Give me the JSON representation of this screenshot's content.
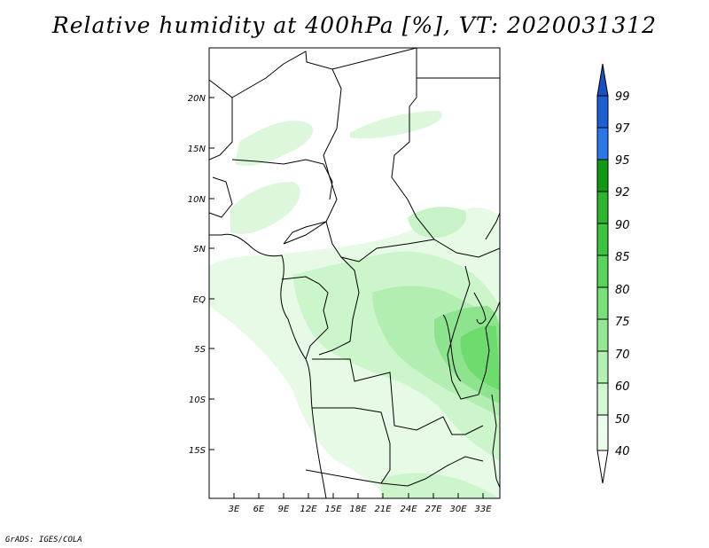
{
  "title": "Relative humidity at 400hPa [%], VT: 2020031312",
  "credit": "GrADS: IGES/COLA",
  "map": {
    "projection": "latlon",
    "lon_range": [
      0,
      35
    ],
    "lat_range": [
      -20,
      25
    ],
    "lat_ticks": [
      {
        "value": 20,
        "label": "20N"
      },
      {
        "value": 15,
        "label": "15N"
      },
      {
        "value": 10,
        "label": "10N"
      },
      {
        "value": 5,
        "label": "5N"
      },
      {
        "value": 0,
        "label": "EQ"
      },
      {
        "value": -5,
        "label": "5S"
      },
      {
        "value": -10,
        "label": "10S"
      },
      {
        "value": -15,
        "label": "15S"
      }
    ],
    "lon_ticks": [
      {
        "value": 3,
        "label": "3E"
      },
      {
        "value": 6,
        "label": "6E"
      },
      {
        "value": 9,
        "label": "9E"
      },
      {
        "value": 12,
        "label": "12E"
      },
      {
        "value": 15,
        "label": "15E"
      },
      {
        "value": 18,
        "label": "18E"
      },
      {
        "value": 21,
        "label": "21E"
      },
      {
        "value": 24,
        "label": "24E"
      },
      {
        "value": 27,
        "label": "27E"
      },
      {
        "value": 30,
        "label": "30E"
      },
      {
        "value": 33,
        "label": "33E"
      }
    ]
  },
  "colorbar": {
    "levels": [
      {
        "label": "99",
        "color": "#1e5fd2"
      },
      {
        "label": "97",
        "color": "#2b78e6"
      },
      {
        "label": "95",
        "color": "#4a9ef0"
      },
      {
        "label": "92",
        "color": "#129a16"
      },
      {
        "label": "90",
        "color": "#2fb42f"
      },
      {
        "label": "85",
        "color": "#3fc43f"
      },
      {
        "label": "80",
        "color": "#5ad45a"
      },
      {
        "label": "75",
        "color": "#78e078"
      },
      {
        "label": "70",
        "color": "#96e896"
      },
      {
        "label": "60",
        "color": "#b4f0b4"
      },
      {
        "label": "50",
        "color": "#d2f8d2"
      },
      {
        "label": "40",
        "color": "#ecfcec"
      }
    ],
    "top_cap_color": "#1a4fc0",
    "bottom_cap_color": "#ffffff"
  },
  "chart_data": {
    "type": "heatmap",
    "title": "Relative humidity at 400hPa [%], VT: 2020031312",
    "variable": "Relative humidity",
    "units": "%",
    "level": "400hPa",
    "valid_time": "2020031312",
    "contour_levels": [
      40,
      50,
      60,
      70,
      75,
      80,
      85,
      90,
      92,
      95,
      97,
      99
    ],
    "xlabel": "",
    "ylabel": "",
    "xlim": [
      0,
      35
    ],
    "ylim": [
      -20,
      25
    ]
  }
}
